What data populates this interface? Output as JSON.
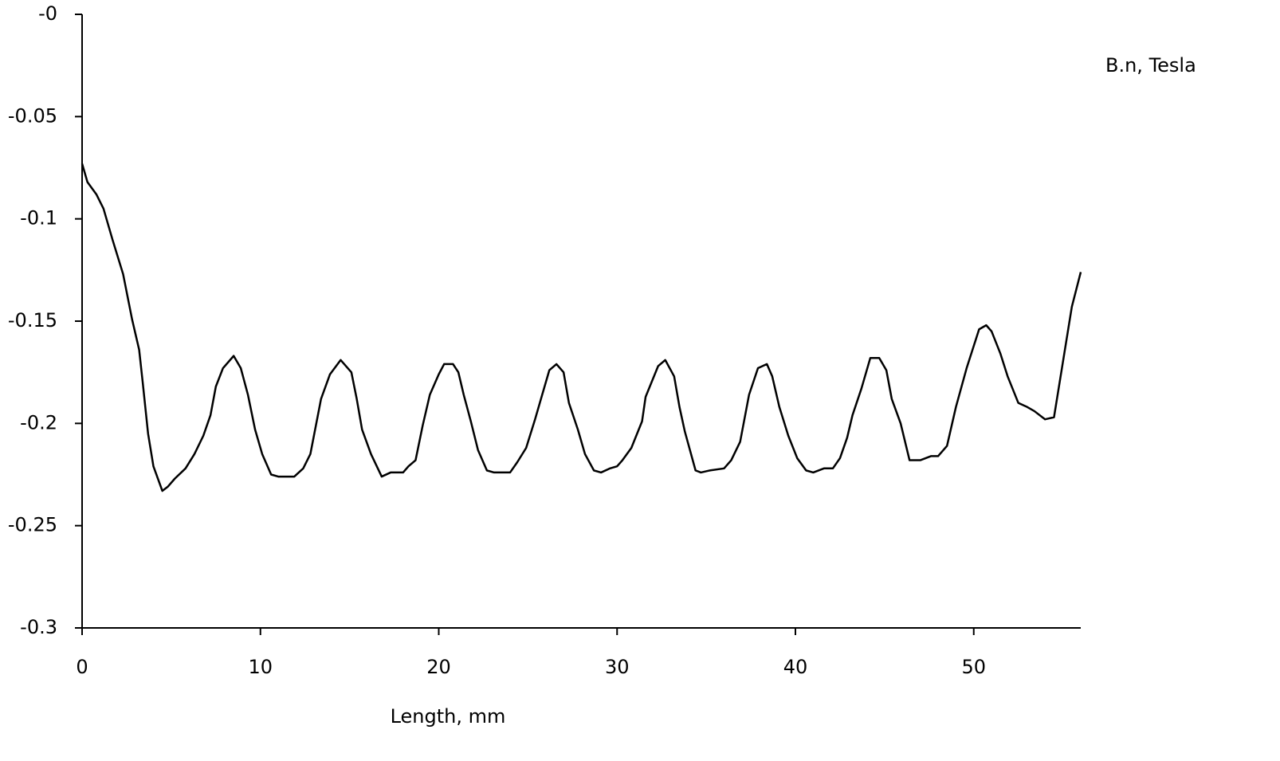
{
  "chart_data": {
    "type": "line",
    "xlabel": "Length, mm",
    "ylabel": "B.n, Tesla",
    "xlim": [
      0,
      56
    ],
    "xticks": [
      0,
      10,
      20,
      30,
      40,
      50
    ],
    "ylim": [
      -0.3,
      0
    ],
    "yticks": [
      {
        "value": 0,
        "label": "-0"
      },
      -0.05,
      -0.1,
      -0.15,
      -0.2,
      -0.25,
      -0.3
    ],
    "grid": false,
    "series": [
      {
        "name": null,
        "color": "#000000",
        "x": [
          0,
          0.3,
          0.8,
          1.2,
          1.7,
          2.3,
          2.8,
          3.2,
          3.4,
          3.7,
          4.0,
          4.5,
          4.8,
          5.2,
          5.8,
          6.3,
          6.8,
          7.2,
          7.5,
          7.9,
          8.5,
          8.9,
          9.3,
          9.7,
          10.1,
          10.6,
          11.0,
          11.9,
          12.4,
          12.8,
          13.4,
          13.9,
          14.5,
          15.1,
          15.4,
          15.7,
          16.2,
          16.8,
          17.3,
          18.0,
          18.3,
          18.7,
          19.1,
          19.5,
          20.0,
          20.3,
          20.8,
          21.1,
          21.4,
          21.8,
          22.2,
          22.7,
          23.1,
          24.0,
          24.4,
          24.9,
          25.4,
          25.8,
          26.2,
          26.6,
          27.0,
          27.3,
          27.8,
          28.2,
          28.7,
          29.1,
          29.6,
          30.0,
          30.3,
          30.8,
          31.4,
          31.6,
          32.3,
          32.7,
          33.2,
          33.5,
          33.8,
          34.4,
          34.7,
          35.2,
          36.0,
          36.4,
          36.9,
          37.4,
          37.9,
          38.4,
          38.7,
          39.1,
          39.6,
          40.1,
          40.6,
          41.0,
          41.6,
          42.1,
          42.5,
          42.9,
          43.2,
          43.7,
          44.2,
          44.7,
          45.1,
          45.4,
          45.9,
          46.4,
          47.0,
          47.6,
          48.0,
          48.5,
          49.0,
          49.6,
          50.3,
          50.7,
          51.0,
          51.5,
          51.9,
          52.5,
          53.0,
          53.4,
          54.0,
          54.5,
          55.0,
          55.5,
          56.0
        ],
        "values": [
          -0.073,
          -0.082,
          -0.088,
          -0.095,
          -0.11,
          -0.127,
          -0.149,
          -0.164,
          -0.18,
          -0.205,
          -0.221,
          -0.233,
          -0.231,
          -0.227,
          -0.222,
          -0.215,
          -0.206,
          -0.196,
          -0.182,
          -0.173,
          -0.167,
          -0.173,
          -0.186,
          -0.203,
          -0.215,
          -0.225,
          -0.226,
          -0.226,
          -0.222,
          -0.215,
          -0.188,
          -0.176,
          -0.169,
          -0.175,
          -0.188,
          -0.203,
          -0.215,
          -0.226,
          -0.224,
          -0.224,
          -0.221,
          -0.218,
          -0.201,
          -0.186,
          -0.176,
          -0.171,
          -0.171,
          -0.175,
          -0.186,
          -0.199,
          -0.213,
          -0.223,
          -0.224,
          -0.224,
          -0.219,
          -0.212,
          -0.198,
          -0.186,
          -0.174,
          -0.171,
          -0.175,
          -0.19,
          -0.203,
          -0.215,
          -0.223,
          -0.224,
          -0.222,
          -0.221,
          -0.218,
          -0.212,
          -0.199,
          -0.187,
          -0.172,
          -0.169,
          -0.177,
          -0.192,
          -0.204,
          -0.223,
          -0.224,
          -0.223,
          -0.222,
          -0.218,
          -0.209,
          -0.186,
          -0.173,
          -0.171,
          -0.177,
          -0.192,
          -0.206,
          -0.217,
          -0.223,
          -0.224,
          -0.222,
          -0.222,
          -0.217,
          -0.207,
          -0.196,
          -0.183,
          -0.168,
          -0.168,
          -0.174,
          -0.188,
          -0.2,
          -0.218,
          -0.218,
          -0.216,
          -0.216,
          -0.211,
          -0.192,
          -0.173,
          -0.154,
          -0.152,
          -0.155,
          -0.166,
          -0.177,
          -0.19,
          -0.192,
          -0.194,
          -0.198,
          -0.197,
          -0.17,
          -0.143,
          -0.126
        ]
      }
    ]
  }
}
